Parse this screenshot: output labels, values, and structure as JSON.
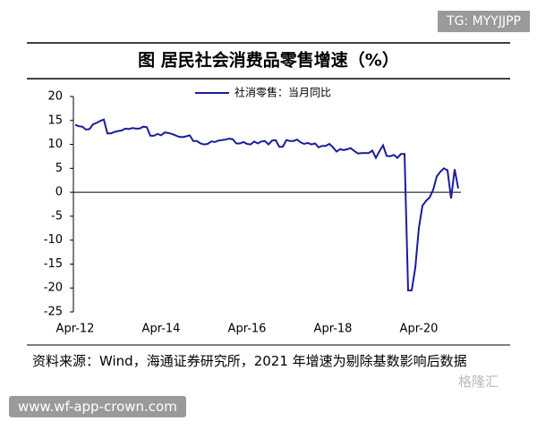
{
  "chart_data": {
    "type": "line",
    "title": "图  居民社会消费品零售增速（%）",
    "categories": [
      "Apr-12",
      null,
      null,
      null,
      null,
      null,
      null,
      null,
      null,
      null,
      null,
      null,
      null,
      null,
      null,
      null,
      null,
      null,
      null,
      null,
      null,
      null,
      null,
      null,
      "Apr-14",
      null,
      null,
      null,
      null,
      null,
      null,
      null,
      null,
      null,
      null,
      null,
      null,
      null,
      null,
      null,
      null,
      null,
      null,
      null,
      null,
      null,
      null,
      null,
      "Apr-16",
      null,
      null,
      null,
      null,
      null,
      null,
      null,
      null,
      null,
      null,
      null,
      null,
      null,
      null,
      null,
      null,
      null,
      null,
      null,
      null,
      null,
      null,
      null,
      "Apr-18",
      null,
      null,
      null,
      null,
      null,
      null,
      null,
      null,
      null,
      null,
      null,
      null,
      null,
      null,
      null,
      null,
      null,
      null,
      null,
      null,
      null,
      null,
      null,
      "Apr-20",
      null,
      null,
      null,
      null,
      null,
      null,
      null,
      null,
      null,
      null,
      null
    ],
    "series": [
      {
        "name": "社消零售：当月同比",
        "color": "#1c1c9c",
        "values": [
          14.1,
          13.8,
          13.7,
          13.1,
          13.2,
          14.2,
          14.5,
          14.9,
          15.2,
          12.3,
          12.3,
          12.6,
          12.8,
          12.9,
          13.3,
          13.2,
          13.4,
          13.3,
          13.3,
          13.7,
          13.6,
          11.8,
          11.8,
          12.2,
          11.9,
          12.5,
          12.4,
          12.2,
          11.9,
          11.6,
          11.5,
          11.7,
          11.9,
          10.7,
          10.7,
          10.2,
          10.0,
          10.1,
          10.6,
          10.5,
          10.8,
          10.9,
          11.0,
          11.2,
          11.1,
          10.2,
          10.2,
          10.5,
          10.1,
          10.0,
          10.6,
          10.2,
          10.6,
          10.7,
          10.0,
          10.8,
          10.9,
          9.5,
          9.5,
          10.9,
          10.7,
          10.7,
          11.0,
          10.4,
          10.1,
          10.3,
          10.0,
          10.2,
          9.4,
          9.7,
          9.7,
          10.1,
          9.4,
          8.5,
          9.0,
          8.8,
          9.0,
          9.2,
          8.6,
          8.1,
          8.2,
          8.2,
          8.2,
          8.7,
          7.2,
          8.6,
          9.8,
          7.6,
          7.5,
          7.8,
          7.2,
          8.0,
          8.0,
          -20.5,
          -20.5,
          -15.8,
          -7.5,
          -2.8,
          -1.8,
          -1.1,
          0.5,
          3.3,
          4.3,
          5.0,
          4.6,
          -1.3,
          4.8,
          0.8
        ]
      }
    ],
    "ylim": [
      -25,
      20
    ],
    "yticks": [
      -25,
      -20,
      -15,
      -10,
      -5,
      0,
      5,
      10,
      15,
      20
    ],
    "legend": "top",
    "source": "资料来源：Wind，海通证券研究所，2021 年增速为剔除基数影响后数据"
  },
  "watermarks": {
    "top": "TG: MYYJJPP",
    "bottom": "www.wf-app-crown.com",
    "logo": "格隆汇"
  }
}
